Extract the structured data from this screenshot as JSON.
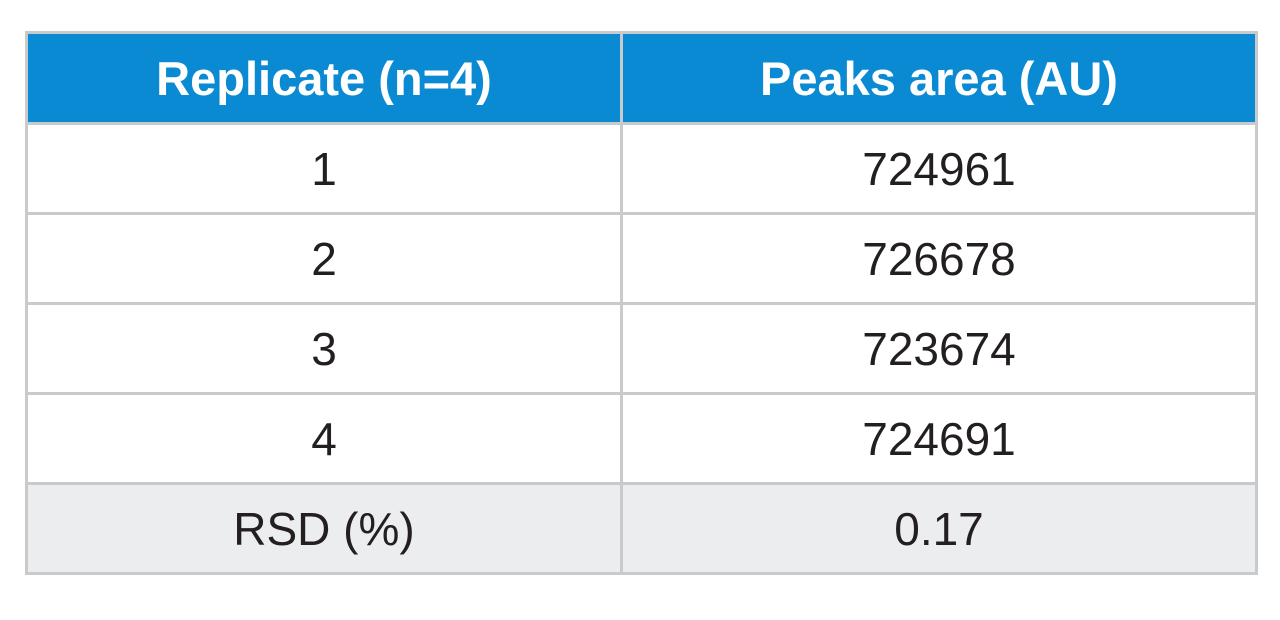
{
  "table": {
    "headers": [
      "Replicate (n=4)",
      "Peaks area (AU)"
    ],
    "rows": [
      [
        "1",
        "724961"
      ],
      [
        "2",
        "726678"
      ],
      [
        "3",
        "723674"
      ],
      [
        "4",
        "724691"
      ]
    ],
    "summary": [
      "RSD (%)",
      "0.17"
    ]
  },
  "colors": {
    "header_background": "#0a8ad2",
    "header_text": "#ffffff",
    "summary_background": "#ecedef",
    "border": "#c8cacc",
    "body_text": "#231f20"
  }
}
